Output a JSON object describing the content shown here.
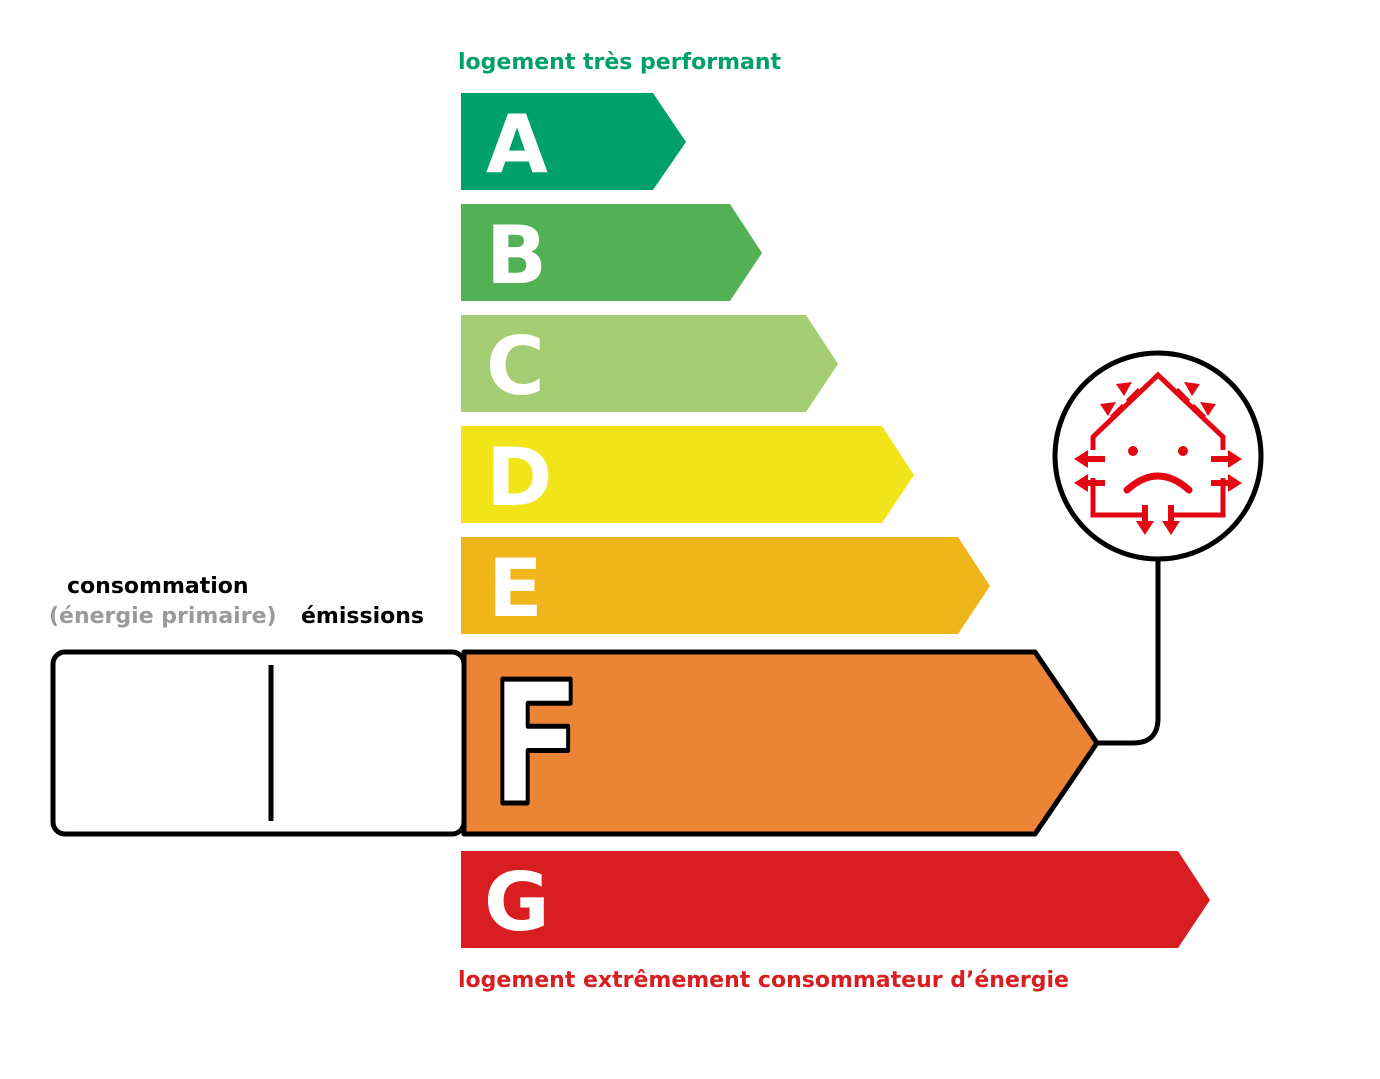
{
  "top_label": "logement très performant",
  "bottom_label": "logement extrêmement consommateur d’énergie",
  "consumption_label": "consommation",
  "consumption_sublabel": "(énergie primaire)",
  "emissions_label": "émissions",
  "classes": [
    {
      "letter": "A",
      "color": "#00A06B"
    },
    {
      "letter": "B",
      "color": "#52B155"
    },
    {
      "letter": "C",
      "color": "#A5CD74"
    },
    {
      "letter": "D",
      "color": "#F1E51A"
    },
    {
      "letter": "E",
      "color": "#F0B51A"
    },
    {
      "letter": "F",
      "color": "#EB8434"
    },
    {
      "letter": "G",
      "color": "#D81E20"
    }
  ],
  "selected_class": "F",
  "consumption_value": "",
  "emissions_value": "",
  "icon": {
    "name": "sad-house-heat-loss-icon",
    "color": "#E30613"
  },
  "colors": {
    "top_label": "#00A06B",
    "bottom_label": "#D81E20",
    "sublabel": "#9A9A9A"
  }
}
